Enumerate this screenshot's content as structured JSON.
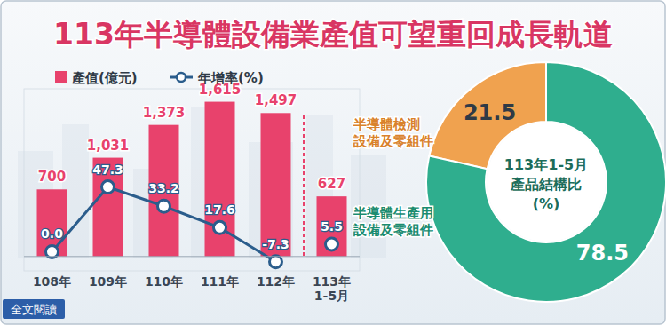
{
  "chart_data": [
    {
      "type": "bar",
      "title": "113年半導體設備業產值可望重回成長軌道",
      "categories": [
        "108年",
        "109年",
        "110年",
        "111年",
        "112年",
        "113年\n1-5月"
      ],
      "series": [
        {
          "name": "產值(億元)",
          "type": "bar",
          "color": "#e8426c",
          "values": [
            700,
            1031,
            1373,
            1615,
            1497,
            627
          ],
          "value_labels": [
            "700",
            "1,031",
            "1,373",
            "1,615",
            "1,497",
            "627"
          ]
        },
        {
          "name": "年增率(%)",
          "type": "line",
          "axis": "y2",
          "color": "#2b5d8c",
          "marker": "circle",
          "values": [
            0,
            47.3,
            33.2,
            17.6,
            -7.3,
            5.5
          ],
          "value_labels": [
            "0.0",
            "47.3",
            "33.2",
            "17.6",
            "-7.3",
            "5.5"
          ]
        }
      ],
      "ylim": [
        -150,
        1750
      ],
      "y2lim": [
        -14,
        119
      ],
      "tick_labels": "x",
      "legend": "top",
      "data_labels": true
    },
    {
      "type": "pie",
      "title": "113年1-5月\n產品結構比\n(%)",
      "categories": [
        "半導體檢測\n設備及零組件",
        "半導體生產用\n設備及零組件"
      ],
      "values": [
        21.5,
        78.5
      ],
      "colors": [
        "#f0a24f",
        "#2fae8e"
      ],
      "data_labels": true
    }
  ],
  "footer": {
    "link": "全文閱讀"
  }
}
